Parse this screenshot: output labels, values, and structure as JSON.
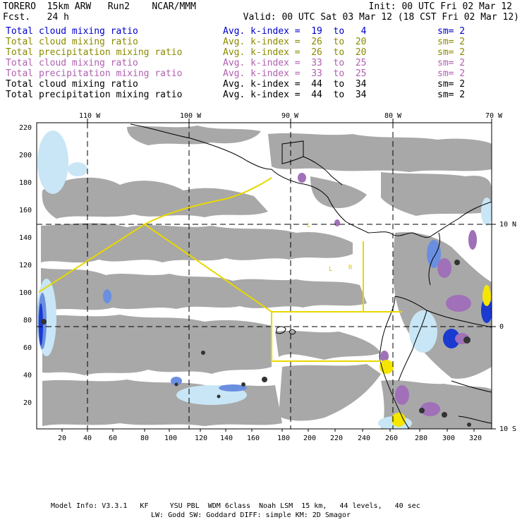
{
  "header": {
    "model": "TORERO  15km ARW   Run2    NCAR/MMM",
    "init": "Init: 00 UTC Fri 02 Mar 12",
    "fcst": "Fcst.   24 h",
    "valid": "Valid: 00 UTC Sat 03 Mar 12 (18 CST Fri 02 Mar 12)"
  },
  "legend": [
    {
      "field": "Total cloud mixing ratio",
      "k": "Avg. k-index =  19  to   4",
      "sm": "sm= 2",
      "color": "#0000cc"
    },
    {
      "field": "Total cloud mixing ratio",
      "k": "Avg. k-index =  26  to  20",
      "sm": "sm= 2",
      "color": "#8a8a00"
    },
    {
      "field": "Total precipitation mixing ratio",
      "k": "Avg. k-index =  26  to  20",
      "sm": "sm= 2",
      "color": "#8a8a00"
    },
    {
      "field": "Total cloud mixing ratio",
      "k": "Avg. k-index =  33  to  25",
      "sm": "sm= 2",
      "color": "#b060b0"
    },
    {
      "field": "Total precipitation mixing ratio",
      "k": "Avg. k-index =  33  to  25",
      "sm": "sm= 2",
      "color": "#b060b0"
    },
    {
      "field": "Total cloud mixing ratio",
      "k": "Avg. k-index =  44  to  34",
      "sm": "sm= 2",
      "color": "#000000"
    },
    {
      "field": "Total precipitation mixing ratio",
      "k": "Avg. k-index =  44  to  34",
      "sm": "sm= 2",
      "color": "#000000"
    }
  ],
  "axes": {
    "lon_labels": [
      "110 W",
      "100 W",
      "90 W",
      "80 W",
      "70 W"
    ],
    "lat_labels": [
      "10 N",
      "0",
      "10 S"
    ],
    "x_ticks": [
      "20",
      "40",
      "60",
      "80",
      "100",
      "120",
      "140",
      "160",
      "180",
      "200",
      "220",
      "240",
      "260",
      "280",
      "300",
      "320"
    ],
    "y_ticks": [
      "220",
      "200",
      "180",
      "160",
      "140",
      "120",
      "100",
      "80",
      "60",
      "40",
      "20"
    ]
  },
  "footer": {
    "line1": "Model Info: V3.3.1   KF     YSU PBL  WDM 6class  Noah LSM  15 km,   44 levels,   40 sec",
    "line2": "LW: Godd SW: Goddard DIFF: simple KM: 2D Smagor"
  },
  "colors": {
    "cloud_gray": "#a8a8a8",
    "light_blue": "#c8e6f5",
    "mid_blue": "#6a8fe0",
    "dark_blue": "#1a3ad0",
    "purple": "#a070b8",
    "yellow": "#f5e600",
    "dark_core": "#333333",
    "flight_track": "#e8d800"
  },
  "map_labels": [
    "L",
    "L",
    "R"
  ]
}
